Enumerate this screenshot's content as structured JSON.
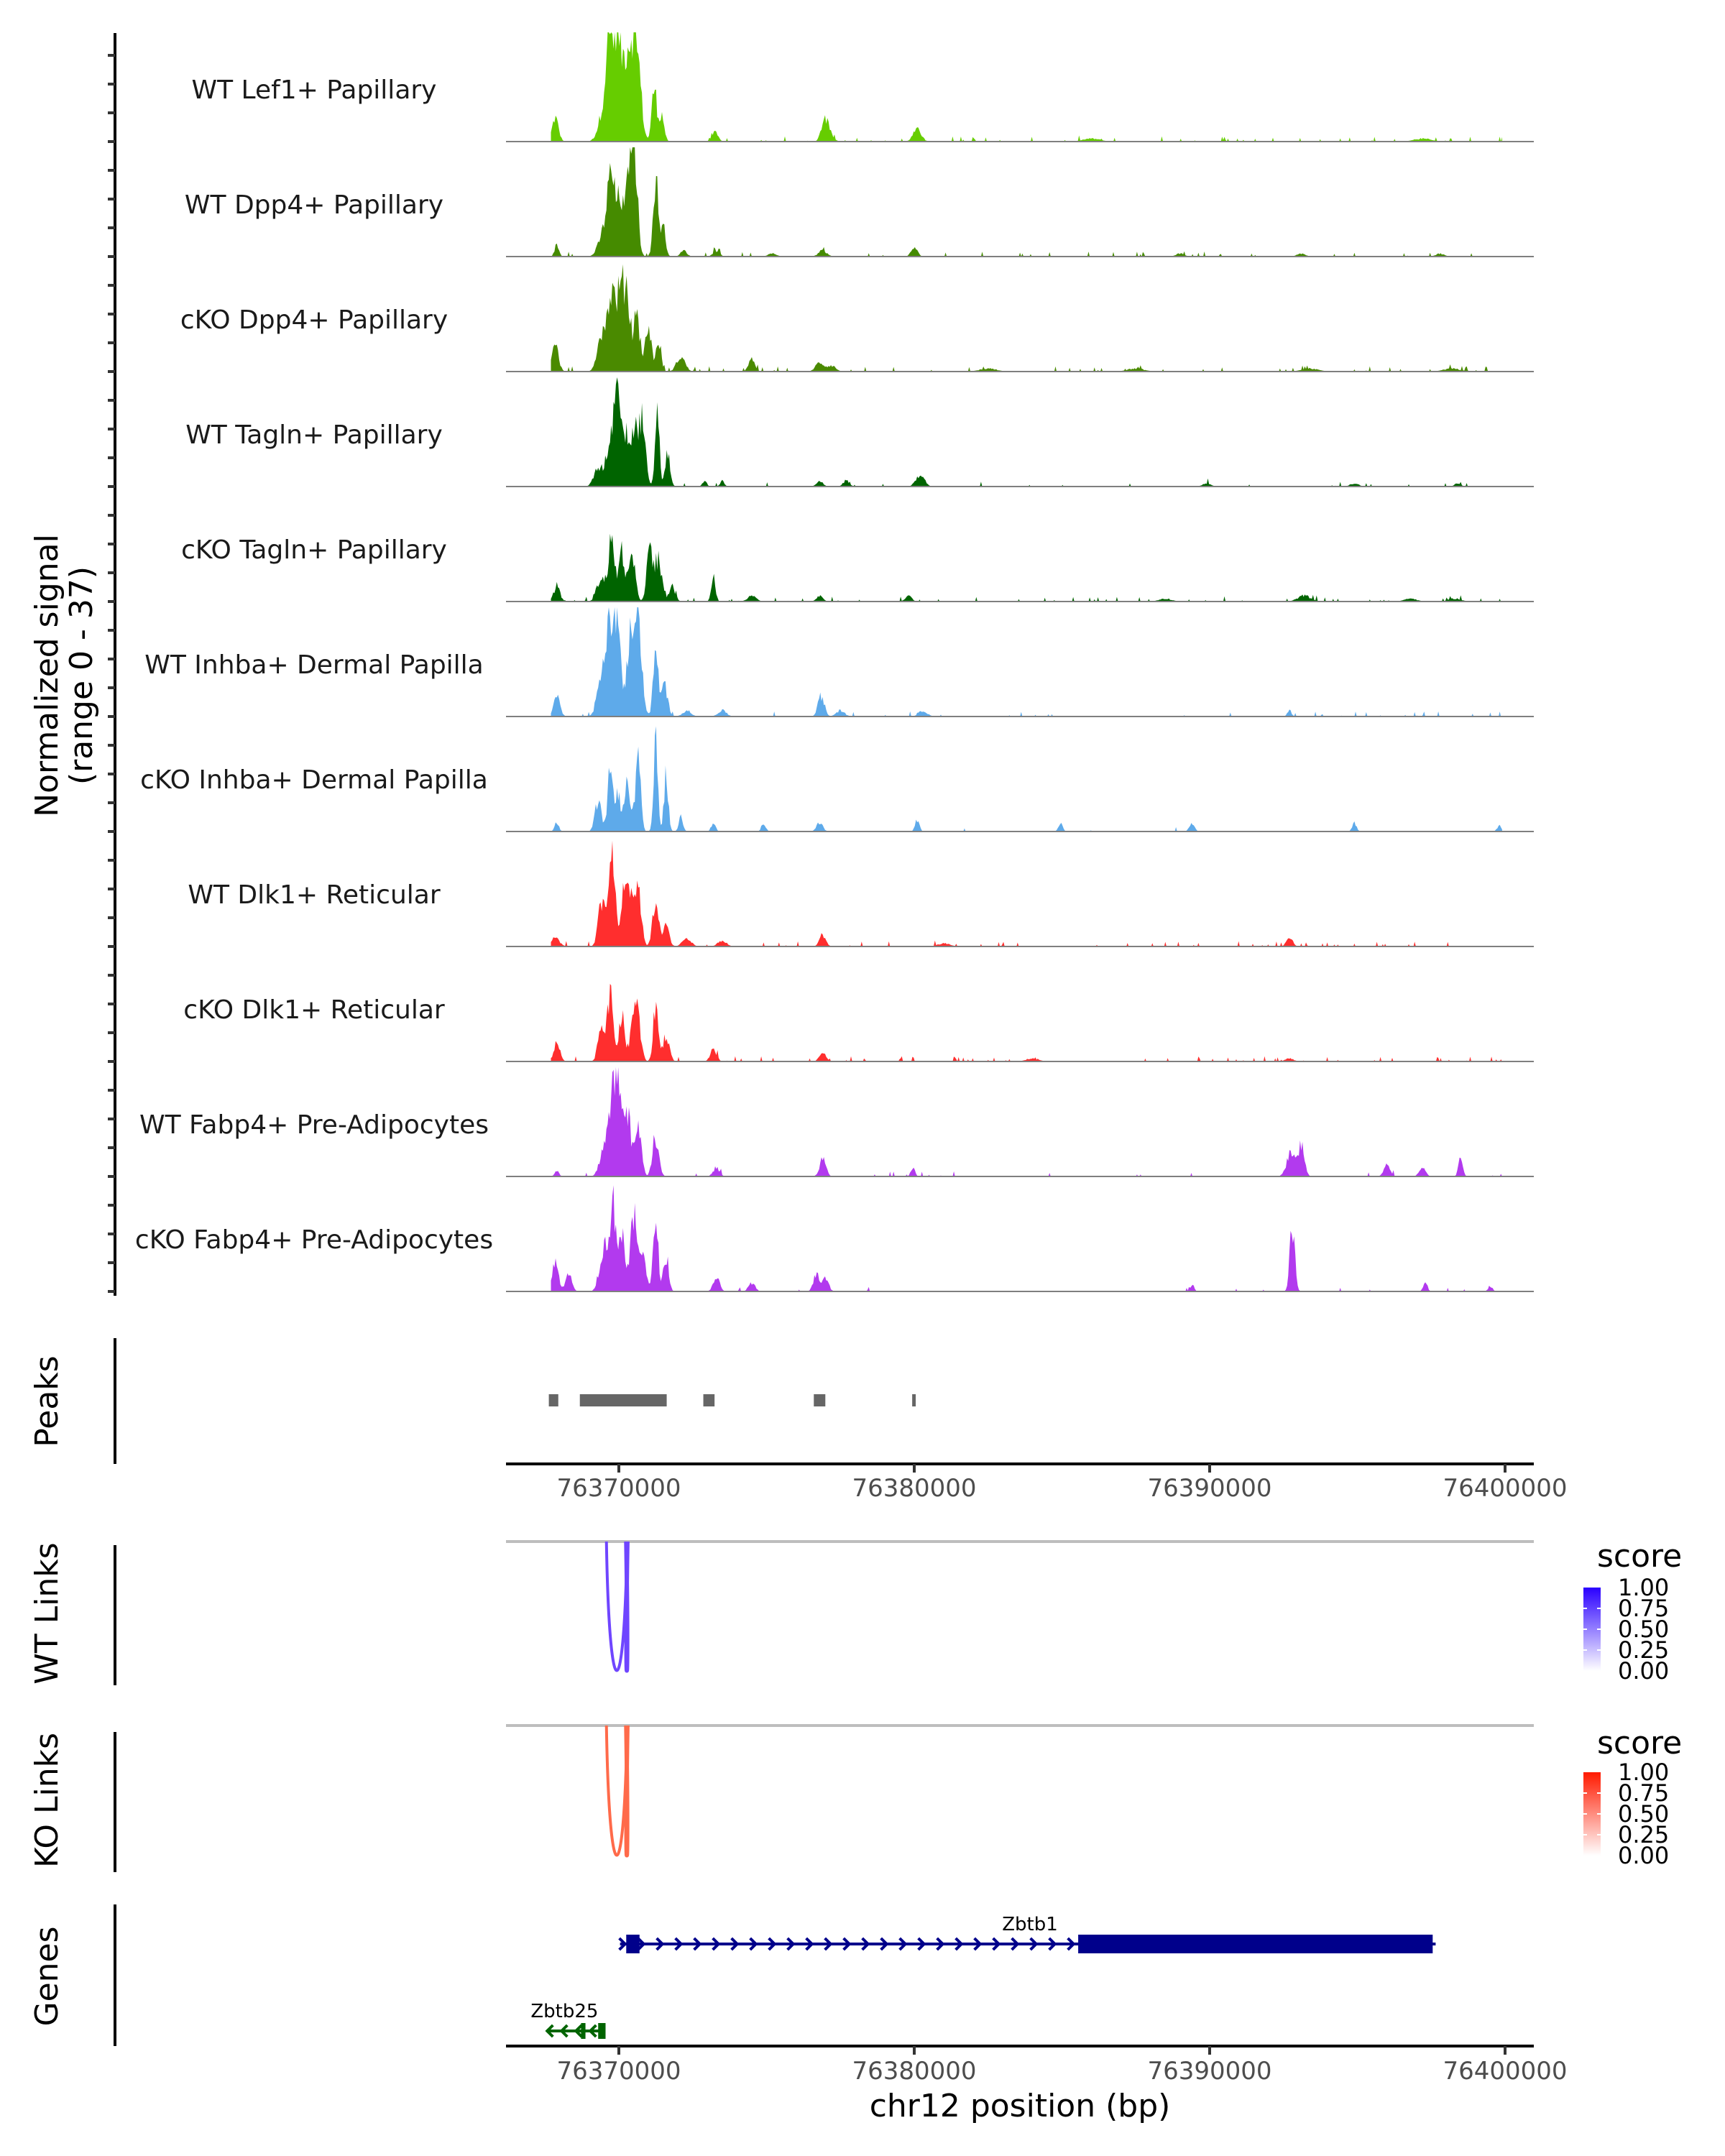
{
  "chart_data": {
    "type": "area",
    "title": "",
    "chromosome": "chr12",
    "xlabel": "chr12 position (bp)",
    "xlim": [
      76366300,
      76401100
    ],
    "x_ticks": [
      76370000,
      76380000,
      76390000,
      76400000
    ],
    "x_tick_labels": [
      "76370000",
      "76380000",
      "76390000",
      "76400000"
    ],
    "coverage": {
      "ylabel_line1": "Normalized signal",
      "ylabel_line2": "(range 0 - 37)",
      "ylim": [
        0,
        37
      ],
      "series": [
        {
          "name": "WT Lef1+ Papillary",
          "color": "#66cd00",
          "peaks": [
            [
              76367850,
              8,
              150
            ],
            [
              76369500,
              10,
              250
            ],
            [
              76369700,
              30,
              180
            ],
            [
              76369950,
              33,
              150
            ],
            [
              76370200,
              22,
              180
            ],
            [
              76370450,
              28,
              200
            ],
            [
              76370650,
              20,
              180
            ],
            [
              76371200,
              18,
              120
            ],
            [
              76371450,
              9,
              120
            ],
            [
              76373250,
              3,
              150
            ],
            [
              76376950,
              6,
              150
            ],
            [
              76377100,
              3,
              200
            ],
            [
              76380100,
              4,
              200
            ],
            [
              76386000,
              1,
              400
            ],
            [
              76397200,
              1,
              400
            ]
          ],
          "noise": 1.0
        },
        {
          "name": "WT Dpp4+ Papillary",
          "color": "#458b00",
          "peaks": [
            [
              76367900,
              4,
              100
            ],
            [
              76369500,
              8,
              250
            ],
            [
              76369750,
              25,
              180
            ],
            [
              76370050,
              18,
              150
            ],
            [
              76370400,
              35,
              180
            ],
            [
              76370550,
              20,
              150
            ],
            [
              76371250,
              26,
              120
            ],
            [
              76371500,
              10,
              120
            ],
            [
              76372200,
              2,
              150
            ],
            [
              76373300,
              2,
              150
            ],
            [
              76375200,
              1,
              200
            ],
            [
              76376900,
              2,
              200
            ],
            [
              76380000,
              3,
              150
            ],
            [
              76389000,
              1,
              200
            ],
            [
              76393100,
              1,
              200
            ],
            [
              76397800,
              1,
              200
            ]
          ],
          "noise": 0.6
        },
        {
          "name": "cKO Dpp4+ Papillary",
          "color": "#4a8a00",
          "peaks": [
            [
              76367850,
              9,
              150
            ],
            [
              76369400,
              12,
              200
            ],
            [
              76369700,
              22,
              150
            ],
            [
              76369900,
              18,
              150
            ],
            [
              76370100,
              23,
              150
            ],
            [
              76370300,
              20,
              150
            ],
            [
              76370600,
              18,
              150
            ],
            [
              76371000,
              15,
              150
            ],
            [
              76371350,
              10,
              120
            ],
            [
              76372100,
              5,
              200
            ],
            [
              76374500,
              4,
              150
            ],
            [
              76376800,
              3,
              200
            ],
            [
              76377200,
              2,
              200
            ],
            [
              76382500,
              1,
              400
            ],
            [
              76387500,
              1,
              400
            ],
            [
              76393400,
              1,
              400
            ],
            [
              76398200,
              1,
              400
            ]
          ],
          "noise": 1.0
        },
        {
          "name": "WT Tagln+ Papillary",
          "color": "#006400",
          "peaks": [
            [
              76369300,
              6,
              200
            ],
            [
              76369700,
              14,
              200
            ],
            [
              76369950,
              37,
              150
            ],
            [
              76370250,
              16,
              200
            ],
            [
              76370550,
              17,
              180
            ],
            [
              76370800,
              20,
              150
            ],
            [
              76371300,
              27,
              100
            ],
            [
              76371650,
              11,
              120
            ],
            [
              76372900,
              2,
              100
            ],
            [
              76373500,
              2,
              100
            ],
            [
              76376800,
              2,
              150
            ],
            [
              76377700,
              2,
              150
            ],
            [
              76380200,
              4,
              200
            ],
            [
              76389900,
              1,
              200
            ],
            [
              76394900,
              1,
              200
            ],
            [
              76398400,
              1,
              150
            ]
          ],
          "noise": 0.4
        },
        {
          "name": "cKO Tagln+ Papillary",
          "color": "#006400",
          "peaks": [
            [
              76367900,
              5,
              150
            ],
            [
              76369400,
              8,
              200
            ],
            [
              76369750,
              20,
              150
            ],
            [
              76370100,
              17,
              150
            ],
            [
              76370450,
              15,
              150
            ],
            [
              76371050,
              17,
              150
            ],
            [
              76371350,
              14,
              150
            ],
            [
              76371800,
              5,
              150
            ],
            [
              76373200,
              8,
              100
            ],
            [
              76374500,
              2,
              200
            ],
            [
              76376800,
              2,
              150
            ],
            [
              76379800,
              2,
              150
            ],
            [
              76388500,
              1,
              300
            ],
            [
              76393200,
              2,
              300
            ],
            [
              76396800,
              1,
              300
            ],
            [
              76398300,
              1,
              300
            ]
          ],
          "noise": 0.8
        },
        {
          "name": "WT Inhba+ Dermal Papilla",
          "color": "#5eaaea",
          "peaks": [
            [
              76367900,
              7,
              150
            ],
            [
              76369400,
              11,
              200
            ],
            [
              76369700,
              30,
              200
            ],
            [
              76369950,
              28,
              150
            ],
            [
              76370400,
              25,
              200
            ],
            [
              76370650,
              31,
              180
            ],
            [
              76371250,
              22,
              120
            ],
            [
              76371550,
              10,
              150
            ],
            [
              76372300,
              2,
              200
            ],
            [
              76373500,
              2,
              200
            ],
            [
              76376850,
              7,
              150
            ],
            [
              76377500,
              2,
              200
            ],
            [
              76380300,
              2,
              200
            ],
            [
              76392700,
              2,
              100
            ]
          ],
          "noise": 0.5
        },
        {
          "name": "cKO Inhba+ Dermal Papilla",
          "color": "#5eaaea",
          "peaks": [
            [
              76367900,
              3,
              100
            ],
            [
              76369300,
              10,
              150
            ],
            [
              76369700,
              19,
              120
            ],
            [
              76369950,
              13,
              150
            ],
            [
              76370300,
              16,
              150
            ],
            [
              76370650,
              25,
              120
            ],
            [
              76371250,
              29,
              100
            ],
            [
              76371600,
              19,
              100
            ],
            [
              76372100,
              5,
              100
            ],
            [
              76373200,
              3,
              100
            ],
            [
              76374900,
              3,
              100
            ],
            [
              76376800,
              3,
              150
            ],
            [
              76380100,
              4,
              100
            ],
            [
              76384950,
              3,
              100
            ],
            [
              76389400,
              3,
              120
            ],
            [
              76394900,
              3,
              100
            ],
            [
              76399800,
              2,
              100
            ]
          ],
          "noise": 0.1
        },
        {
          "name": "WT Dlk1+ Reticular",
          "color": "#ff2e2e",
          "peaks": [
            [
              76367850,
              3,
              200
            ],
            [
              76369400,
              14,
              150
            ],
            [
              76369750,
              30,
              180
            ],
            [
              76370200,
              21,
              150
            ],
            [
              76370400,
              16,
              150
            ],
            [
              76370650,
              20,
              150
            ],
            [
              76371250,
              15,
              150
            ],
            [
              76371600,
              7,
              150
            ],
            [
              76372300,
              3,
              200
            ],
            [
              76373500,
              2,
              200
            ],
            [
              76376900,
              4,
              150
            ],
            [
              76381000,
              1,
              300
            ],
            [
              76392700,
              3,
              150
            ]
          ],
          "noise": 0.8
        },
        {
          "name": "cKO Dlk1+ Reticular",
          "color": "#ff2e2e",
          "peaks": [
            [
              76367900,
              6,
              150
            ],
            [
              76369400,
              12,
              150
            ],
            [
              76369700,
              22,
              150
            ],
            [
              76370100,
              15,
              150
            ],
            [
              76370500,
              14,
              150
            ],
            [
              76370650,
              12,
              150
            ],
            [
              76371250,
              19,
              120
            ],
            [
              76371600,
              9,
              150
            ],
            [
              76373200,
              4,
              150
            ],
            [
              76376900,
              3,
              150
            ],
            [
              76384000,
              1,
              300
            ],
            [
              76392700,
              1,
              200
            ]
          ],
          "noise": 0.8
        },
        {
          "name": "WT Fabp4+ Pre-Adipocytes",
          "color": "#b23aee",
          "peaks": [
            [
              76367900,
              2,
              100
            ],
            [
              76369500,
              10,
              200
            ],
            [
              76369800,
              24,
              180
            ],
            [
              76370000,
              30,
              150
            ],
            [
              76370300,
              22,
              150
            ],
            [
              76370650,
              18,
              150
            ],
            [
              76371250,
              13,
              150
            ],
            [
              76373300,
              3,
              150
            ],
            [
              76376900,
              6,
              150
            ],
            [
              76379950,
              3,
              100
            ],
            [
              76392750,
              8,
              200
            ],
            [
              76393100,
              10,
              150
            ],
            [
              76396000,
              4,
              150
            ],
            [
              76397200,
              3,
              150
            ],
            [
              76398500,
              7,
              100
            ]
          ],
          "noise": 0.3
        },
        {
          "name": "cKO Fabp4+ Pre-Adipocytes",
          "color": "#b23aee",
          "peaks": [
            [
              76367850,
              10,
              150
            ],
            [
              76368300,
              6,
              150
            ],
            [
              76369500,
              15,
              200
            ],
            [
              76369800,
              28,
              150
            ],
            [
              76370100,
              20,
              150
            ],
            [
              76370500,
              25,
              150
            ],
            [
              76370800,
              15,
              150
            ],
            [
              76371250,
              24,
              120
            ],
            [
              76371600,
              12,
              120
            ],
            [
              76373300,
              5,
              150
            ],
            [
              76374500,
              3,
              150
            ],
            [
              76376700,
              6,
              150
            ],
            [
              76377000,
              4,
              150
            ],
            [
              76389400,
              2,
              100
            ],
            [
              76392800,
              22,
              120
            ],
            [
              76397300,
              3,
              100
            ],
            [
              76399500,
              2,
              100
            ]
          ],
          "noise": 0.2
        }
      ]
    },
    "peaks_track": {
      "label": "Peaks",
      "color": "#666666",
      "regions": [
        [
          76367630,
          76367950
        ],
        [
          76368680,
          76371620
        ],
        [
          76372860,
          76373240
        ],
        [
          76376600,
          76376990
        ],
        [
          76379930,
          76380050
        ]
      ]
    },
    "links": [
      {
        "label": "WT Links",
        "color": "#6f45ff",
        "legend": {
          "title": "score",
          "ticks": [
            "1.00",
            "0.75",
            "0.50",
            "0.25",
            "0.00"
          ],
          "high": "#2a00ff",
          "low": "#ffffff"
        },
        "arcs": [
          [
            76369580,
            76370280,
            1.0
          ],
          [
            76370250,
            76370290,
            1.0
          ]
        ]
      },
      {
        "label": "KO Links",
        "color": "#ff6a4a",
        "legend": {
          "title": "score",
          "ticks": [
            "1.00",
            "0.75",
            "0.50",
            "0.25",
            "0.00"
          ],
          "high": "#ff1a00",
          "low": "#ffffff"
        },
        "arcs": [
          [
            76369580,
            76370280,
            1.0
          ],
          [
            76370250,
            76370290,
            1.0
          ]
        ]
      }
    ],
    "genes": {
      "label": "Genes",
      "items": [
        {
          "name": "Zbtb1",
          "strand": "+",
          "color": "#00008b",
          "start": 76370040,
          "end": 76397650,
          "exons": [
            [
              76370250,
              76370700
            ],
            [
              76385550,
              76397550
            ]
          ]
        },
        {
          "name": "Zbtb25",
          "strand": "-",
          "color": "#006400",
          "start": 76367550,
          "end": 76369550,
          "exons": [
            [
              76368720,
              76368870
            ],
            [
              76369300,
              76369550
            ]
          ]
        }
      ]
    }
  }
}
